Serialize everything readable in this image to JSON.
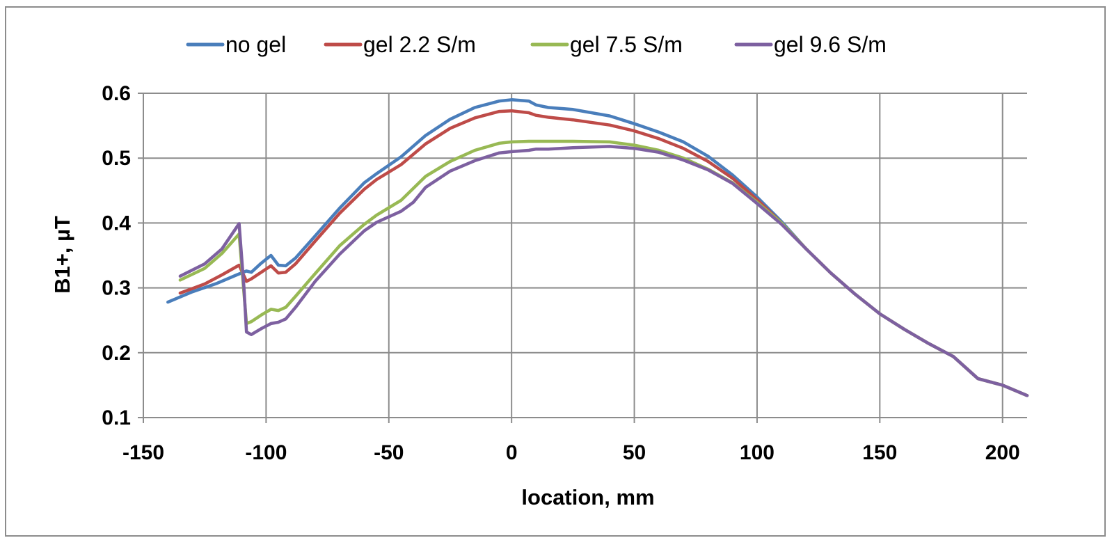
{
  "chart_data": {
    "type": "line",
    "title": "",
    "xlabel": "location, mm",
    "ylabel": "B1+, µT",
    "xlim": [
      -150,
      210
    ],
    "ylim": [
      0.1,
      0.6
    ],
    "x_ticks": [
      -150,
      -100,
      -50,
      0,
      50,
      100,
      150,
      200
    ],
    "y_ticks": [
      0.1,
      0.2,
      0.3,
      0.4,
      0.5,
      0.6
    ],
    "x_tick_labels": [
      "-150",
      "-100",
      "-50",
      "0",
      "50",
      "100",
      "150",
      "200"
    ],
    "y_tick_labels": [
      "0.1",
      "0.2",
      "0.3",
      "0.4",
      "0.5",
      "0.6"
    ],
    "grid": true,
    "legend_position": "top",
    "series": [
      {
        "name": "no gel",
        "color": "#4a7ebb",
        "x": [
          -140,
          -130,
          -120,
          -112,
          -108,
          -106,
          -102,
          -98,
          -95,
          -92,
          -88,
          -80,
          -70,
          -60,
          -55,
          -45,
          -35,
          -25,
          -15,
          -5,
          0,
          7,
          10,
          15,
          25,
          40,
          50,
          60,
          70,
          80,
          90,
          100,
          110,
          120,
          130,
          140,
          150,
          160,
          170,
          180,
          190,
          200,
          210
        ],
        "y": [
          0.278,
          0.294,
          0.307,
          0.32,
          0.326,
          0.324,
          0.338,
          0.35,
          0.335,
          0.334,
          0.346,
          0.38,
          0.423,
          0.462,
          0.476,
          0.502,
          0.535,
          0.56,
          0.578,
          0.588,
          0.59,
          0.588,
          0.582,
          0.578,
          0.575,
          0.565,
          0.553,
          0.54,
          0.525,
          0.503,
          0.474,
          0.44,
          0.402,
          0.36,
          0.323,
          0.29,
          0.26,
          0.236,
          0.214,
          0.194,
          0.16,
          0.15,
          0.134
        ]
      },
      {
        "name": "gel 2.2 S/m",
        "color": "#be4b48",
        "x": [
          -135,
          -125,
          -118,
          -111,
          -108,
          -106,
          -102,
          -98,
          -95,
          -92,
          -88,
          -80,
          -70,
          -60,
          -55,
          -45,
          -35,
          -25,
          -15,
          -5,
          0,
          7,
          10,
          15,
          25,
          40,
          50,
          60,
          70,
          80,
          90,
          100,
          110,
          120,
          130,
          140,
          150,
          160,
          170,
          180,
          190,
          200,
          210
        ],
        "y": [
          0.292,
          0.306,
          0.32,
          0.335,
          0.31,
          0.314,
          0.324,
          0.334,
          0.323,
          0.324,
          0.337,
          0.372,
          0.415,
          0.452,
          0.467,
          0.49,
          0.522,
          0.546,
          0.562,
          0.572,
          0.573,
          0.57,
          0.566,
          0.563,
          0.559,
          0.551,
          0.542,
          0.53,
          0.515,
          0.495,
          0.469,
          0.436,
          0.4,
          0.36,
          0.323,
          0.29,
          0.26,
          0.236,
          0.214,
          0.194,
          0.16,
          0.15,
          0.134
        ]
      },
      {
        "name": "gel 7.5 S/m",
        "color": "#98b954",
        "x": [
          -135,
          -125,
          -118,
          -111,
          -108,
          -106,
          -102,
          -98,
          -95,
          -92,
          -88,
          -80,
          -70,
          -60,
          -55,
          -45,
          -35,
          -25,
          -15,
          -5,
          0,
          7,
          10,
          15,
          25,
          40,
          50,
          60,
          70,
          80,
          90,
          100,
          110,
          120,
          130,
          140,
          150,
          160,
          170,
          180,
          190,
          200,
          210
        ],
        "y": [
          0.312,
          0.33,
          0.353,
          0.383,
          0.245,
          0.248,
          0.258,
          0.267,
          0.265,
          0.27,
          0.287,
          0.322,
          0.365,
          0.398,
          0.412,
          0.435,
          0.472,
          0.495,
          0.512,
          0.523,
          0.525,
          0.526,
          0.526,
          0.526,
          0.526,
          0.525,
          0.52,
          0.512,
          0.5,
          0.483,
          0.462,
          0.432,
          0.4,
          0.36,
          0.323,
          0.29,
          0.26,
          0.236,
          0.214,
          0.194,
          0.16,
          0.15,
          0.134
        ]
      },
      {
        "name": "gel 9.6 S/m",
        "color": "#7d60a0",
        "x": [
          -135,
          -125,
          -118,
          -111,
          -109,
          -108,
          -106,
          -102,
          -98,
          -95,
          -92,
          -88,
          -80,
          -70,
          -60,
          -55,
          -45,
          -40,
          -35,
          -25,
          -15,
          -5,
          0,
          7,
          10,
          15,
          25,
          40,
          50,
          60,
          70,
          80,
          90,
          100,
          110,
          120,
          130,
          140,
          150,
          160,
          170,
          180,
          190,
          200,
          210
        ],
        "y": [
          0.318,
          0.337,
          0.36,
          0.399,
          0.3,
          0.232,
          0.228,
          0.237,
          0.245,
          0.247,
          0.252,
          0.27,
          0.31,
          0.352,
          0.388,
          0.401,
          0.418,
          0.432,
          0.455,
          0.48,
          0.496,
          0.508,
          0.51,
          0.512,
          0.514,
          0.514,
          0.516,
          0.518,
          0.515,
          0.509,
          0.497,
          0.482,
          0.461,
          0.43,
          0.398,
          0.36,
          0.323,
          0.29,
          0.26,
          0.236,
          0.214,
          0.194,
          0.16,
          0.15,
          0.134
        ]
      }
    ]
  }
}
